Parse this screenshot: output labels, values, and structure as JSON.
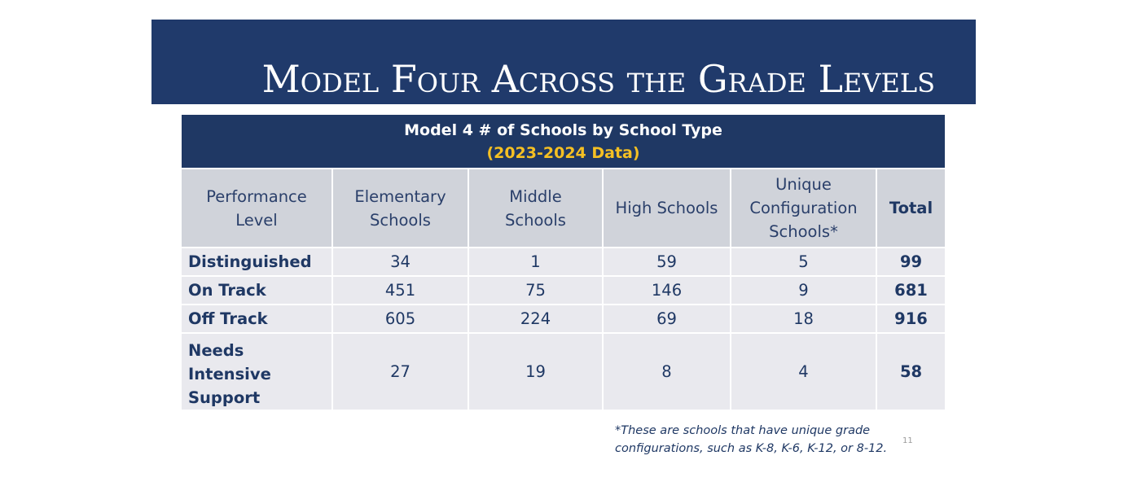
{
  "slide": {
    "title": "Model Four Across the Grade Levels",
    "page_number": "11"
  },
  "table": {
    "caption": "Model 4 # of Schools by School Type",
    "subcaption": "(2023-2024 Data)",
    "headers": [
      [
        "Performance",
        "Level"
      ],
      [
        "Elementary",
        "Schools"
      ],
      [
        "Middle",
        "Schools"
      ],
      [
        "High Schools"
      ],
      [
        "Unique",
        "Configuration",
        "Schools*"
      ],
      [
        "Total"
      ]
    ],
    "rows": [
      {
        "label": [
          "Distinguished"
        ],
        "values": [
          "34",
          "1",
          "59",
          "5",
          "99"
        ]
      },
      {
        "label": [
          "On Track"
        ],
        "values": [
          "451",
          "75",
          "146",
          "9",
          "681"
        ]
      },
      {
        "label": [
          "Off Track"
        ],
        "values": [
          "605",
          "224",
          "69",
          "18",
          "916"
        ]
      },
      {
        "label": [
          "Needs Intensive",
          "Support"
        ],
        "values": [
          "27",
          "19",
          "8",
          "4",
          "58"
        ]
      }
    ]
  },
  "footnote": {
    "lines": [
      "*These are schools that have unique grade",
      "configurations, such as K-8, K-6, K-12, or 8-12."
    ]
  },
  "colors": {
    "banner": "#203a6b",
    "caption_bg": "#1f3864",
    "subcaption": "#f5c023",
    "header_bg": "#d0d3da",
    "body_bg": "#e9e9ee",
    "text": "#1f3864"
  }
}
